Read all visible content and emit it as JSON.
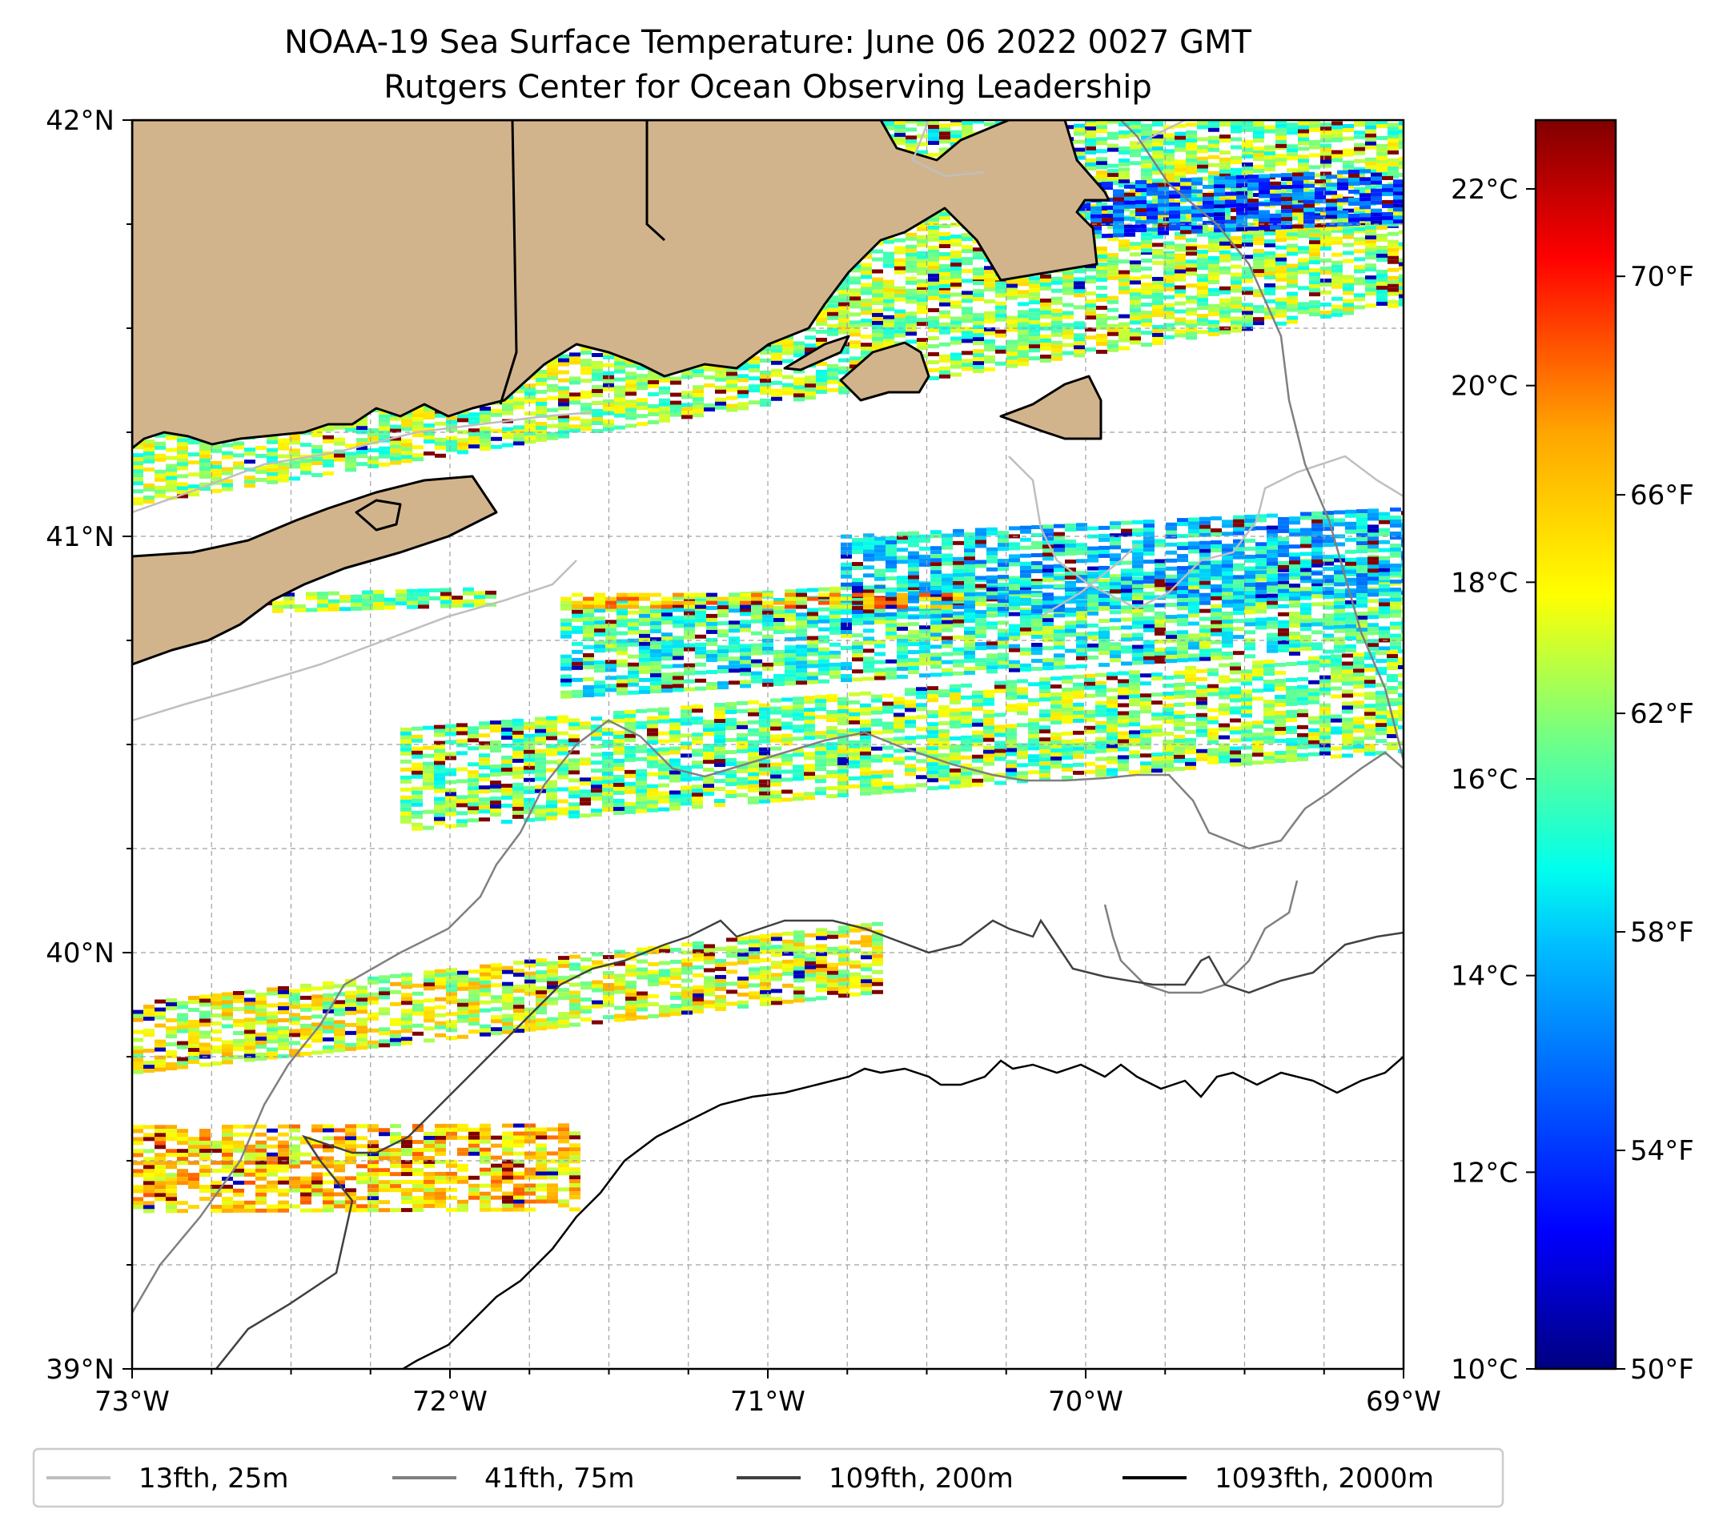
{
  "title": {
    "line1": "NOAA-19 Sea Surface Temperature: June 06 2022 0027 GMT",
    "line2": "Rutgers Center for Ocean Observing Leadership"
  },
  "map": {
    "lon_range": [
      -73,
      -69
    ],
    "lat_range": [
      39,
      42
    ],
    "x_ticks": [
      {
        "value": -73,
        "label": "73°W"
      },
      {
        "value": -72,
        "label": "72°W"
      },
      {
        "value": -71,
        "label": "71°W"
      },
      {
        "value": -70,
        "label": "70°W"
      },
      {
        "value": -69,
        "label": "69°W"
      }
    ],
    "y_ticks": [
      {
        "value": 42,
        "label": "42°N"
      },
      {
        "value": 41,
        "label": "41°N"
      },
      {
        "value": 40,
        "label": "40°N"
      },
      {
        "value": 39,
        "label": "39°N"
      }
    ],
    "grid": "dashed gray every 0.25°",
    "land_color": "#d2b48c"
  },
  "colorbar": {
    "colormap": "jet",
    "range_c": [
      10,
      22.7
    ],
    "celsius_ticks": [
      {
        "value": 22,
        "label": "22°C"
      },
      {
        "value": 20,
        "label": "20°C"
      },
      {
        "value": 18,
        "label": "18°C"
      },
      {
        "value": 16,
        "label": "16°C"
      },
      {
        "value": 14,
        "label": "14°C"
      },
      {
        "value": 12,
        "label": "12°C"
      },
      {
        "value": 10,
        "label": "10°C"
      }
    ],
    "fahrenheit_ticks": [
      {
        "value": 70,
        "label": "70°F"
      },
      {
        "value": 66,
        "label": "66°F"
      },
      {
        "value": 62,
        "label": "62°F"
      },
      {
        "value": 58,
        "label": "58°F"
      },
      {
        "value": 54,
        "label": "54°F"
      },
      {
        "value": 50,
        "label": "50°F"
      }
    ]
  },
  "legend": {
    "placement": "bottom",
    "items": [
      {
        "label": "13fth, 25m",
        "color": "#bfbfbf"
      },
      {
        "label": "41fth, 75m",
        "color": "#808080"
      },
      {
        "label": "109fth, 200m",
        "color": "#404040"
      },
      {
        "label": "1093fth, 2000m",
        "color": "#000000"
      }
    ]
  },
  "colors": {
    "iso_25m": "#bfbfbf",
    "iso_75m": "#808080",
    "iso_200m": "#404040",
    "iso_2000m": "#000000"
  }
}
